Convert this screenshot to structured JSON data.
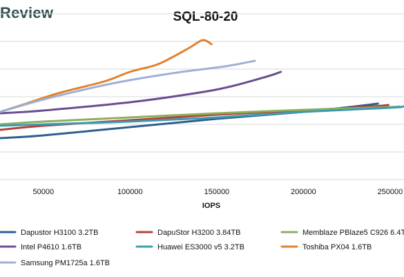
{
  "brand": {
    "text": "Review"
  },
  "chart_data": {
    "type": "line",
    "title": "SQL-80-20",
    "xlabel": "IOPS",
    "ylabel": "",
    "xlim": [
      25000,
      258000
    ],
    "ylim": [
      0,
      12
    ],
    "x_ticks": [
      50000,
      100000,
      150000,
      200000,
      250000
    ],
    "x_tick_labels": [
      "50000",
      "100000",
      "150000",
      "200000",
      "250000"
    ],
    "y_gridlines": [
      2,
      4,
      6,
      8,
      10,
      12
    ],
    "grid": true,
    "legend_position": "bottom",
    "series": [
      {
        "name": "Dapustor H3100 3.2TB",
        "color": "#2e5f8e",
        "x": [
          25000,
          50000,
          100000,
          150000,
          200000,
          230000,
          243000
        ],
        "y": [
          3.0,
          3.2,
          3.8,
          4.4,
          4.9,
          5.3,
          5.5
        ]
      },
      {
        "name": "DapuStor H3200 3.84TB",
        "color": "#b5403b",
        "x": [
          25000,
          50000,
          100000,
          150000,
          200000,
          240000,
          249000
        ],
        "y": [
          3.6,
          3.9,
          4.3,
          4.7,
          5.0,
          5.3,
          5.4
        ]
      },
      {
        "name": "Memblaze PBlaze5 C926 6.4TB",
        "color": "#8cb05a",
        "x": [
          25000,
          50000,
          100000,
          150000,
          200000,
          250000,
          255000
        ],
        "y": [
          4.0,
          4.2,
          4.5,
          4.8,
          5.05,
          5.25,
          5.3
        ]
      },
      {
        "name": "Intel P4610 1.6TB",
        "color": "#6a4d8f",
        "x": [
          25000,
          50000,
          100000,
          140000,
          160000,
          180000,
          187000
        ],
        "y": [
          4.8,
          5.0,
          5.6,
          6.3,
          6.8,
          7.5,
          7.8
        ]
      },
      {
        "name": "Huawei ES3000 v5 3.2TB",
        "color": "#3b9bb3",
        "x": [
          25000,
          50000,
          100000,
          150000,
          200000,
          250000,
          258000
        ],
        "y": [
          3.9,
          4.0,
          4.2,
          4.5,
          4.9,
          5.2,
          5.3
        ]
      },
      {
        "name": "Toshiba PX04 1.6TB",
        "color": "#e0812c",
        "x": [
          25000,
          40000,
          60000,
          85000,
          100000,
          115000,
          125000,
          135000,
          142000,
          147000
        ],
        "y": [
          4.9,
          5.5,
          6.3,
          7.1,
          7.8,
          8.3,
          8.9,
          9.6,
          10.1,
          9.8
        ]
      },
      {
        "name": "Samsung PM1725a 1.6TB",
        "color": "#9db0d6",
        "x": [
          25000,
          50000,
          80000,
          100000,
          130000,
          155000,
          172000
        ],
        "y": [
          4.9,
          5.8,
          6.7,
          7.2,
          7.8,
          8.2,
          8.6
        ]
      }
    ]
  }
}
